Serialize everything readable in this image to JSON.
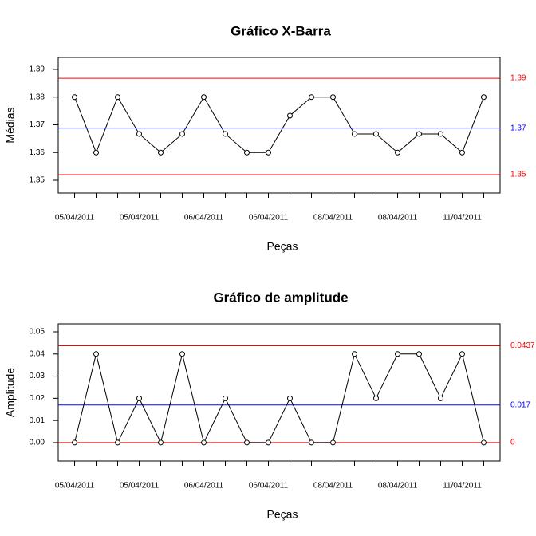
{
  "chart_data": [
    {
      "type": "line",
      "title": "Gráfico X-Barra",
      "y_label": "Médias",
      "x_label": "Peças",
      "categories": [
        "05/04/2011",
        null,
        null,
        "05/04/2011",
        null,
        null,
        "06/04/2011",
        null,
        null,
        "06/04/2011",
        null,
        null,
        "08/04/2011",
        null,
        null,
        "08/04/2011",
        null,
        null,
        "11/04/2011",
        null
      ],
      "series": [
        {
          "color": "#000000",
          "values": [
            1.38,
            1.36,
            1.38,
            1.3667,
            1.36,
            1.3667,
            1.38,
            1.3667,
            1.36,
            1.36,
            1.3733,
            1.38,
            1.38,
            1.3667,
            1.3667,
            1.36,
            1.3667,
            1.3667,
            1.36,
            1.38
          ]
        }
      ],
      "ylim": [
        1.3454,
        1.3943
      ],
      "yticks": [
        1.35,
        1.36,
        1.37,
        1.38,
        1.39
      ],
      "control_lines": [
        {
          "value": 1.3868,
          "label": "1.39",
          "color": "#ff0000"
        },
        {
          "value": 1.3688,
          "label": "1.37",
          "color": "#0000ff"
        },
        {
          "value": 1.352,
          "label": "1.35",
          "color": "#ff0000"
        }
      ]
    },
    {
      "type": "line",
      "title": "Gráfico de amplitude",
      "y_label": "Amplitude",
      "x_label": "Peças",
      "categories": [
        "05/04/2011",
        null,
        null,
        "05/04/2011",
        null,
        null,
        "06/04/2011",
        null,
        null,
        "06/04/2011",
        null,
        null,
        "08/04/2011",
        null,
        null,
        "08/04/2011",
        null,
        null,
        "11/04/2011",
        null
      ],
      "series": [
        {
          "color": "#000000",
          "values": [
            0,
            0.04,
            0,
            0.02,
            0,
            0.04,
            0,
            0.02,
            0,
            0,
            0.02,
            0,
            0,
            0.04,
            0.02,
            0.04,
            0.04,
            0.02,
            0.04,
            0
          ]
        }
      ],
      "ylim": [
        -0.0083,
        0.0536
      ],
      "yticks": [
        {
          "value": 0,
          "label": "0.00"
        },
        {
          "value": 0.01,
          "label": "0.01"
        },
        {
          "value": 0.02,
          "label": "0.02"
        },
        {
          "value": 0.03,
          "label": "0.03"
        },
        {
          "value": 0.04,
          "label": "0.04"
        },
        {
          "value": 0.05,
          "label": "0.05"
        }
      ],
      "control_lines": [
        {
          "value": 0.0437,
          "label": "0.0437",
          "color": "#ff0000"
        },
        {
          "value": 0.017,
          "label": "0.017",
          "color": "#0000ff"
        },
        {
          "value": 0,
          "label": "0",
          "color": "#ff0000"
        }
      ]
    }
  ]
}
